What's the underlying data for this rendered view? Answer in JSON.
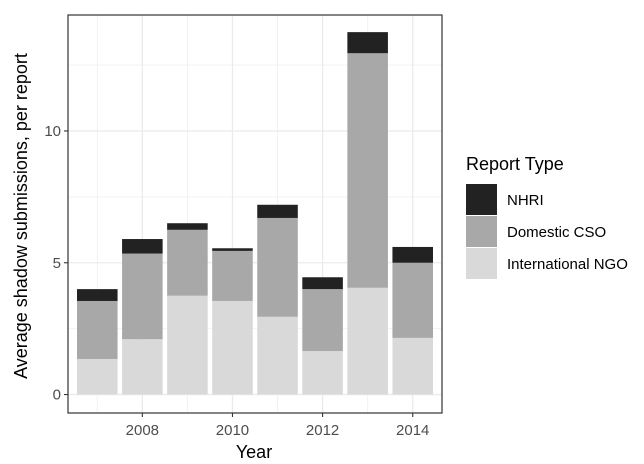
{
  "chart_data": {
    "type": "bar",
    "stacked": true,
    "x": [
      2007,
      2008,
      2009,
      2010,
      2011,
      2012,
      2013,
      2014
    ],
    "series": [
      {
        "name": "International NGO",
        "values": [
          1.35,
          2.1,
          3.75,
          3.55,
          2.95,
          1.65,
          4.05,
          2.15
        ],
        "color": "#d9d9d9"
      },
      {
        "name": "Domestic CSO",
        "values": [
          2.2,
          3.25,
          2.5,
          1.9,
          3.75,
          2.35,
          8.9,
          2.85
        ],
        "color": "#a8a8a8"
      },
      {
        "name": "NHRI",
        "values": [
          0.45,
          0.55,
          0.25,
          0.1,
          0.5,
          0.45,
          0.8,
          0.6
        ],
        "color": "#222222"
      }
    ],
    "xlabel": "Year",
    "ylabel": "Average shadow submissions, per report",
    "x_ticks": [
      2008,
      2010,
      2012,
      2014
    ],
    "y_ticks": [
      0,
      5,
      10
    ],
    "xlim": [
      2006.35,
      2014.65
    ],
    "ylim": [
      -0.7,
      14.4
    ],
    "grid": true,
    "legend": {
      "title": "Report Type",
      "position": "right",
      "entries": [
        "NHRI",
        "Domestic CSO",
        "International NGO"
      ]
    }
  }
}
